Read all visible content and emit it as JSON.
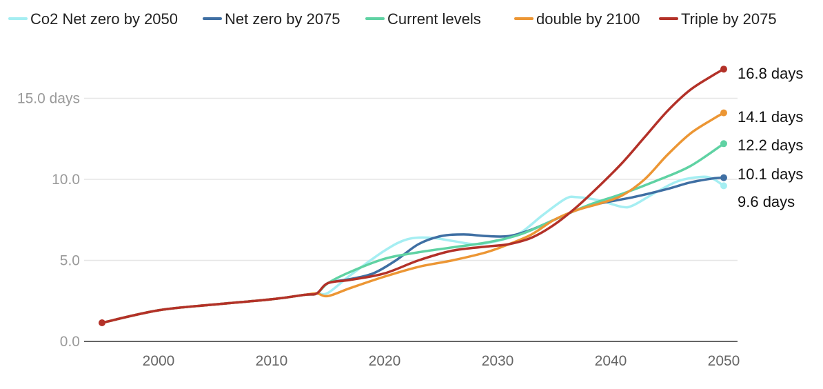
{
  "chart_data": {
    "type": "line",
    "title": "",
    "xlabel": "",
    "ylabel": "",
    "xlim": [
      1995,
      2050
    ],
    "ylim": [
      0,
      17
    ],
    "x_ticks": [
      2000,
      2010,
      2020,
      2030,
      2040,
      2050
    ],
    "y_ticks": [
      {
        "value": 0,
        "label": "0.0"
      },
      {
        "value": 5,
        "label": "5.0"
      },
      {
        "value": 10,
        "label": "10.0"
      },
      {
        "value": 15,
        "label": "15.0 days"
      }
    ],
    "grid": true,
    "legend_position": "top",
    "series": [
      {
        "name": "Co2 Net zero by 2050",
        "color": "#a5eef2",
        "end_label": "9.6 days",
        "points": [
          [
            1995,
            1.15
          ],
          [
            2000,
            1.92
          ],
          [
            2005,
            2.28
          ],
          [
            2010,
            2.6
          ],
          [
            2013,
            2.88
          ],
          [
            2014,
            2.96
          ],
          [
            2015,
            3.0
          ],
          [
            2017,
            4.1
          ],
          [
            2020,
            5.6
          ],
          [
            2022,
            6.3
          ],
          [
            2024,
            6.4
          ],
          [
            2026,
            6.2
          ],
          [
            2028,
            6.0
          ],
          [
            2030,
            6.2
          ],
          [
            2032,
            6.7
          ],
          [
            2034,
            7.8
          ],
          [
            2036,
            8.8
          ],
          [
            2037,
            8.9
          ],
          [
            2039,
            8.7
          ],
          [
            2041,
            8.3
          ],
          [
            2042,
            8.4
          ],
          [
            2044,
            9.2
          ],
          [
            2046,
            9.9
          ],
          [
            2048,
            10.15
          ],
          [
            2049,
            10.05
          ],
          [
            2050,
            9.6
          ]
        ]
      },
      {
        "name": "Net zero by 2075",
        "color": "#3f6fa3",
        "end_label": "10.1 days",
        "points": [
          [
            1995,
            1.15
          ],
          [
            2000,
            1.92
          ],
          [
            2005,
            2.28
          ],
          [
            2010,
            2.6
          ],
          [
            2013,
            2.88
          ],
          [
            2014,
            2.96
          ],
          [
            2015,
            3.6
          ],
          [
            2017,
            3.85
          ],
          [
            2019,
            4.2
          ],
          [
            2021,
            5.0
          ],
          [
            2023,
            6.0
          ],
          [
            2025,
            6.5
          ],
          [
            2027,
            6.6
          ],
          [
            2029,
            6.5
          ],
          [
            2031,
            6.5
          ],
          [
            2033,
            6.9
          ],
          [
            2035,
            7.5
          ],
          [
            2037,
            8.1
          ],
          [
            2039,
            8.5
          ],
          [
            2042,
            8.9
          ],
          [
            2045,
            9.4
          ],
          [
            2047,
            9.8
          ],
          [
            2049,
            10.05
          ],
          [
            2050,
            10.1
          ]
        ]
      },
      {
        "name": "Current levels",
        "color": "#5fd2a3",
        "end_label": "12.2 days",
        "points": [
          [
            1995,
            1.15
          ],
          [
            2000,
            1.92
          ],
          [
            2005,
            2.28
          ],
          [
            2010,
            2.6
          ],
          [
            2013,
            2.88
          ],
          [
            2014,
            2.96
          ],
          [
            2015,
            3.6
          ],
          [
            2017,
            4.3
          ],
          [
            2020,
            5.1
          ],
          [
            2023,
            5.5
          ],
          [
            2026,
            5.8
          ],
          [
            2029,
            6.1
          ],
          [
            2032,
            6.6
          ],
          [
            2035,
            7.5
          ],
          [
            2038,
            8.4
          ],
          [
            2041,
            9.1
          ],
          [
            2044,
            9.9
          ],
          [
            2047,
            10.8
          ],
          [
            2050,
            12.2
          ]
        ]
      },
      {
        "name": "double by 2100",
        "color": "#ec9634",
        "end_label": "14.1 days",
        "points": [
          [
            1995,
            1.15
          ],
          [
            2000,
            1.92
          ],
          [
            2005,
            2.28
          ],
          [
            2010,
            2.6
          ],
          [
            2013,
            2.88
          ],
          [
            2014,
            2.96
          ],
          [
            2015,
            2.8
          ],
          [
            2017,
            3.3
          ],
          [
            2020,
            4.0
          ],
          [
            2023,
            4.6
          ],
          [
            2026,
            5.0
          ],
          [
            2029,
            5.5
          ],
          [
            2031,
            6.0
          ],
          [
            2033,
            6.6
          ],
          [
            2035,
            7.5
          ],
          [
            2037,
            8.1
          ],
          [
            2039,
            8.5
          ],
          [
            2041,
            9.0
          ],
          [
            2043,
            10.0
          ],
          [
            2045,
            11.5
          ],
          [
            2047,
            12.8
          ],
          [
            2049,
            13.7
          ],
          [
            2050,
            14.1
          ]
        ]
      },
      {
        "name": "Triple by 2075",
        "color": "#b33128",
        "end_label": "16.8 days",
        "points": [
          [
            1995,
            1.15
          ],
          [
            2000,
            1.92
          ],
          [
            2005,
            2.28
          ],
          [
            2010,
            2.6
          ],
          [
            2013,
            2.88
          ],
          [
            2014,
            2.96
          ],
          [
            2015,
            3.6
          ],
          [
            2017,
            3.8
          ],
          [
            2020,
            4.2
          ],
          [
            2023,
            5.0
          ],
          [
            2026,
            5.6
          ],
          [
            2029,
            5.85
          ],
          [
            2031,
            6.0
          ],
          [
            2033,
            6.4
          ],
          [
            2035,
            7.2
          ],
          [
            2037,
            8.3
          ],
          [
            2039,
            9.6
          ],
          [
            2041,
            11.0
          ],
          [
            2043,
            12.6
          ],
          [
            2045,
            14.2
          ],
          [
            2047,
            15.5
          ],
          [
            2049,
            16.4
          ],
          [
            2050,
            16.8
          ]
        ]
      }
    ]
  }
}
